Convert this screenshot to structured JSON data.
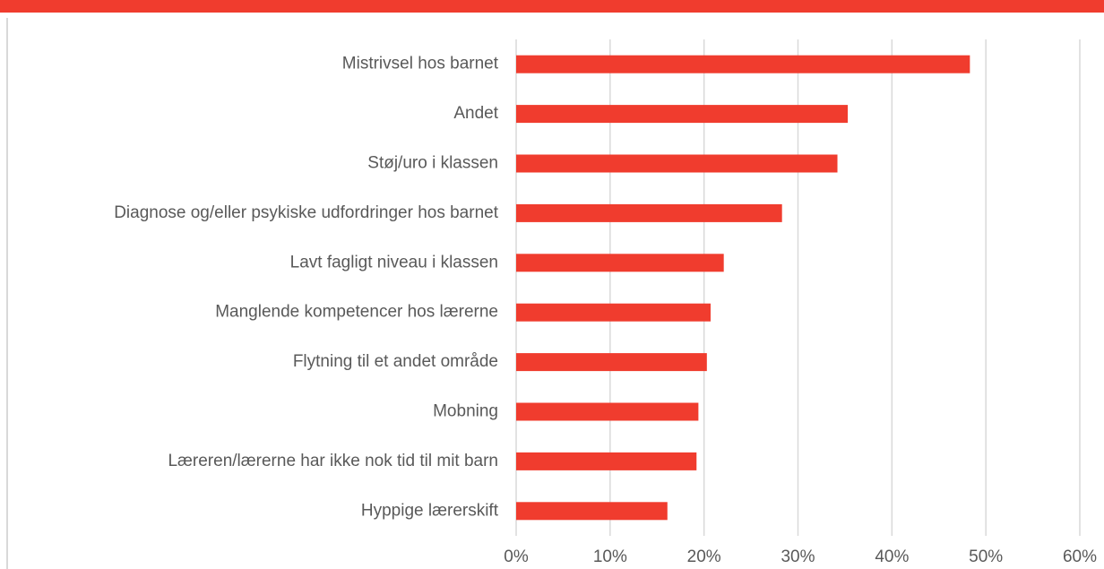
{
  "chart_data": {
    "type": "barh",
    "categories": [
      "Mistrivsel hos barnet",
      "Andet",
      "Støj/uro i klassen",
      "Diagnose og/eller psykiske udfordringer hos barnet",
      "Lavt fagligt niveau i klassen",
      "Manglende kompetencer hos lærerne",
      "Flytning til et andet område",
      "Mobning",
      "Læreren/lærerne har ikke nok tid til mit barn",
      "Hyppige lærerskift"
    ],
    "values": [
      48.3,
      35.3,
      34.2,
      28.3,
      22.1,
      20.7,
      20.3,
      19.4,
      19.2,
      16.1
    ],
    "color": "#f03c2e",
    "xlim": [
      0,
      60
    ],
    "xticks": [
      {
        "value": 0,
        "label": "0%"
      },
      {
        "value": 10,
        "label": "10%"
      },
      {
        "value": 20,
        "label": "20%"
      },
      {
        "value": 30,
        "label": "30%"
      },
      {
        "value": 40,
        "label": "40%"
      },
      {
        "value": 50,
        "label": "50%"
      },
      {
        "value": 60,
        "label": "60%"
      }
    ],
    "grid": true
  }
}
